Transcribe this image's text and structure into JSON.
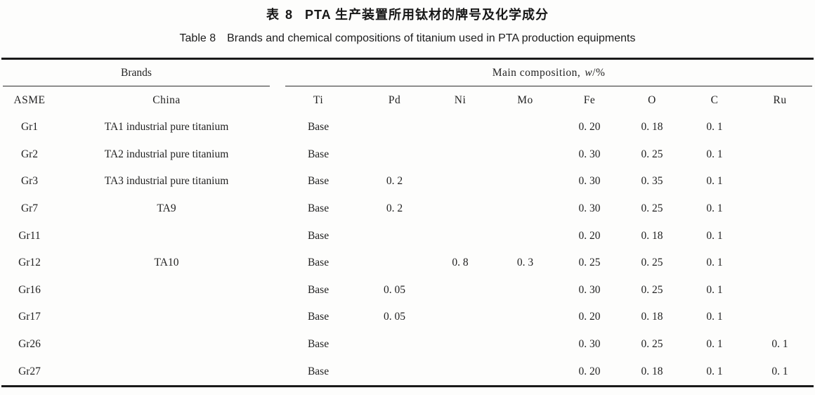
{
  "titles": {
    "zh_label": "表 8",
    "zh_text": "PTA 生产装置所用钛材的牌号及化学成分",
    "en_label": "Table 8",
    "en_text": "Brands and chemical compositions of titanium used in PTA production equipments"
  },
  "table": {
    "group_headers": {
      "brands": "Brands",
      "composition_label": "Main composition,",
      "composition_symbol": "w",
      "composition_unit": "/%"
    },
    "columns": [
      "ASME",
      "China",
      "Ti",
      "Pd",
      "Ni",
      "Mo",
      "Fe",
      "O",
      "C",
      "Ru"
    ],
    "rows": [
      {
        "asme": "Gr1",
        "china": "TA1 industrial pure titanium",
        "ti": "Base",
        "pd": "",
        "ni": "",
        "mo": "",
        "fe": "0. 20",
        "o": "0. 18",
        "c": "0. 1",
        "ru": ""
      },
      {
        "asme": "Gr2",
        "china": "TA2 industrial pure titanium",
        "ti": "Base",
        "pd": "",
        "ni": "",
        "mo": "",
        "fe": "0. 30",
        "o": "0. 25",
        "c": "0. 1",
        "ru": ""
      },
      {
        "asme": "Gr3",
        "china": "TA3 industrial pure titanium",
        "ti": "Base",
        "pd": "0. 2",
        "ni": "",
        "mo": "",
        "fe": "0. 30",
        "o": "0. 35",
        "c": "0. 1",
        "ru": ""
      },
      {
        "asme": "Gr7",
        "china": "TA9",
        "ti": "Base",
        "pd": "0. 2",
        "ni": "",
        "mo": "",
        "fe": "0. 30",
        "o": "0. 25",
        "c": "0. 1",
        "ru": ""
      },
      {
        "asme": "Gr11",
        "china": "",
        "ti": "Base",
        "pd": "",
        "ni": "",
        "mo": "",
        "fe": "0. 20",
        "o": "0. 18",
        "c": "0. 1",
        "ru": ""
      },
      {
        "asme": "Gr12",
        "china": "TA10",
        "ti": "Base",
        "pd": "",
        "ni": "0. 8",
        "mo": "0. 3",
        "fe": "0. 25",
        "o": "0. 25",
        "c": "0. 1",
        "ru": ""
      },
      {
        "asme": "Gr16",
        "china": "",
        "ti": "Base",
        "pd": "0. 05",
        "ni": "",
        "mo": "",
        "fe": "0. 30",
        "o": "0. 25",
        "c": "0. 1",
        "ru": ""
      },
      {
        "asme": "Gr17",
        "china": "",
        "ti": "Base",
        "pd": "0. 05",
        "ni": "",
        "mo": "",
        "fe": "0. 20",
        "o": "0. 18",
        "c": "0. 1",
        "ru": ""
      },
      {
        "asme": "Gr26",
        "china": "",
        "ti": "Base",
        "pd": "",
        "ni": "",
        "mo": "",
        "fe": "0. 30",
        "o": "0. 25",
        "c": "0. 1",
        "ru": "0. 1"
      },
      {
        "asme": "Gr27",
        "china": "",
        "ti": "Base",
        "pd": "",
        "ni": "",
        "mo": "",
        "fe": "0. 20",
        "o": "0. 18",
        "c": "0. 1",
        "ru": "0. 1"
      }
    ]
  }
}
